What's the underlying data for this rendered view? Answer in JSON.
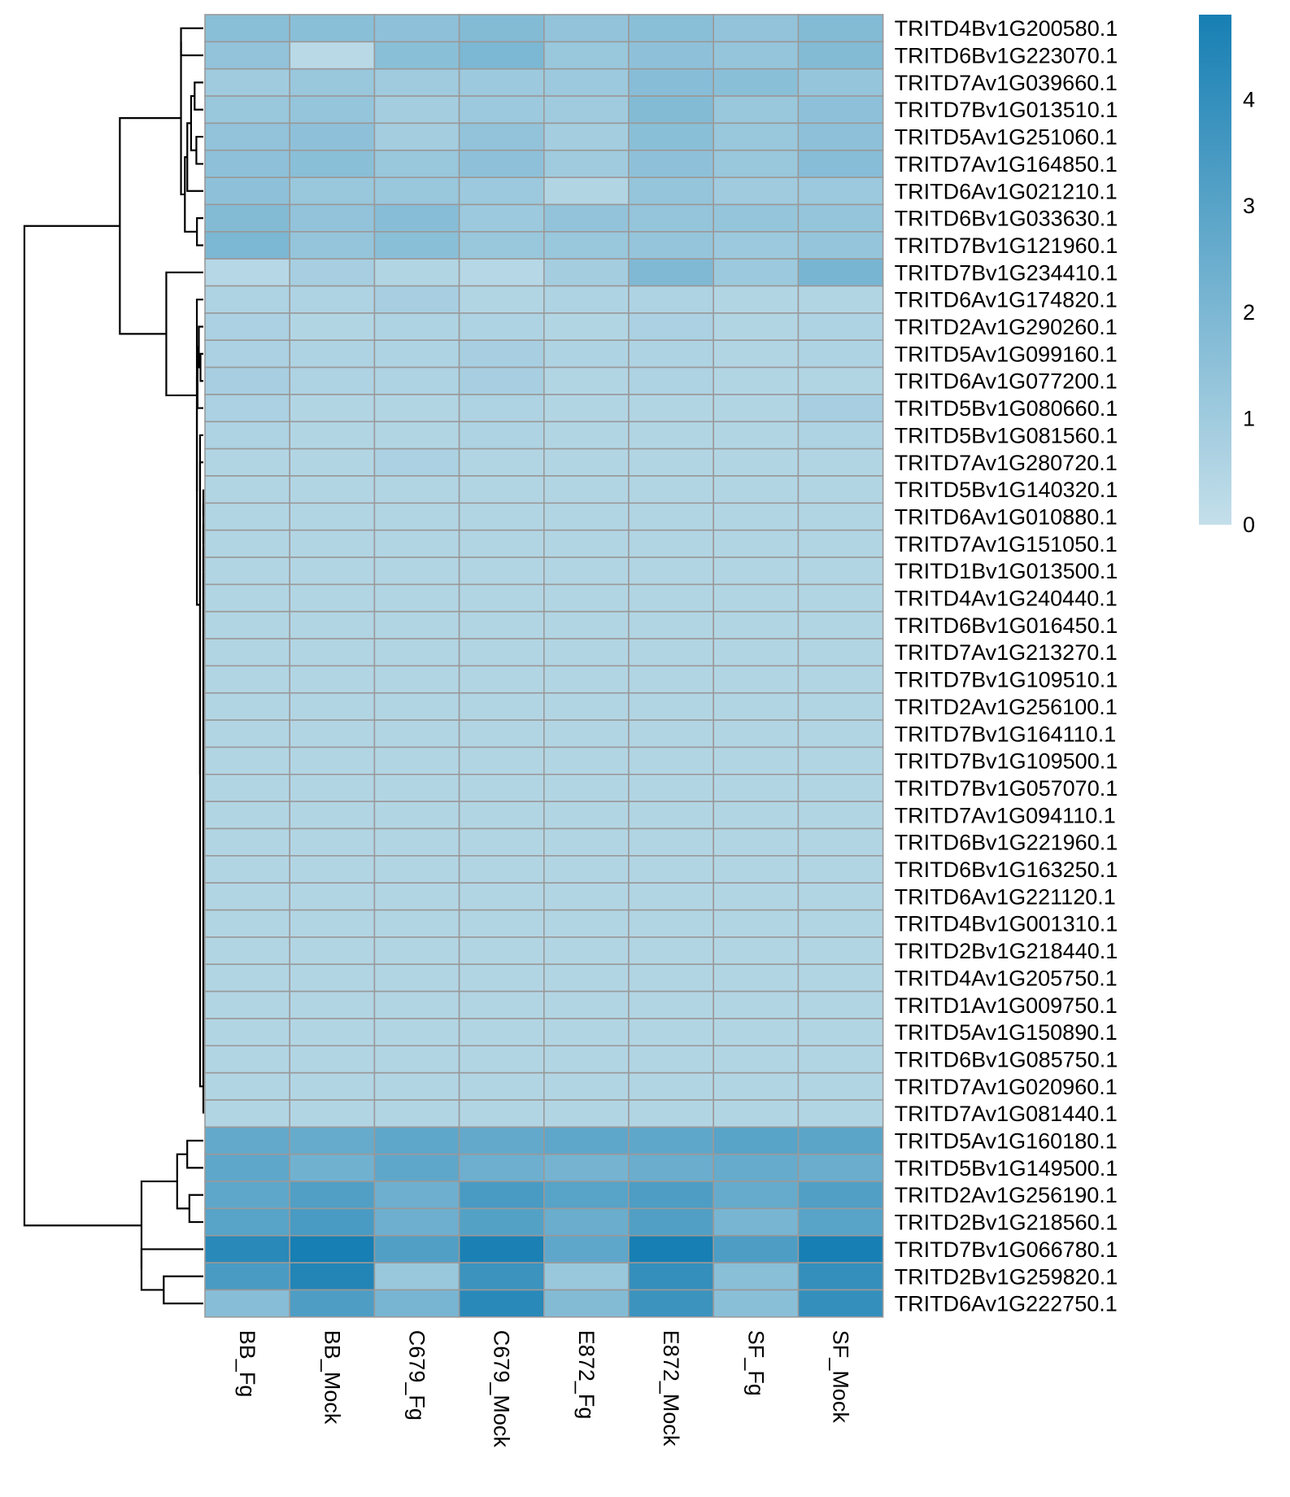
{
  "chart_data": {
    "type": "heatmap",
    "title": "",
    "columns": [
      "BB_Fg",
      "BB_Mock",
      "C679_Fg",
      "C679_Mock",
      "E872_Fg",
      "E872_Mock",
      "SF_Fg",
      "SF_Mock"
    ],
    "rows": [
      "TRITD4Bv1G200580.1",
      "TRITD6Bv1G223070.1",
      "TRITD7Av1G039660.1",
      "TRITD7Bv1G013510.1",
      "TRITD5Av1G251060.1",
      "TRITD7Av1G164850.1",
      "TRITD6Av1G021210.1",
      "TRITD6Bv1G033630.1",
      "TRITD7Bv1G121960.1",
      "TRITD7Bv1G234410.1",
      "TRITD6Av1G174820.1",
      "TRITD2Av1G290260.1",
      "TRITD5Av1G099160.1",
      "TRITD6Av1G077200.1",
      "TRITD5Bv1G080660.1",
      "TRITD5Bv1G081560.1",
      "TRITD7Av1G280720.1",
      "TRITD5Bv1G140320.1",
      "TRITD6Av1G010880.1",
      "TRITD7Av1G151050.1",
      "TRITD1Bv1G013500.1",
      "TRITD4Av1G240440.1",
      "TRITD6Bv1G016450.1",
      "TRITD7Av1G213270.1",
      "TRITD7Bv1G109510.1",
      "TRITD2Av1G256100.1",
      "TRITD7Bv1G164110.1",
      "TRITD7Bv1G109500.1",
      "TRITD7Bv1G057070.1",
      "TRITD7Av1G094110.1",
      "TRITD6Bv1G221960.1",
      "TRITD6Bv1G163250.1",
      "TRITD6Av1G221120.1",
      "TRITD4Bv1G001310.1",
      "TRITD2Bv1G218440.1",
      "TRITD4Av1G205750.1",
      "TRITD1Av1G009750.1",
      "TRITD5Av1G150890.1",
      "TRITD6Bv1G085750.1",
      "TRITD7Av1G020960.1",
      "TRITD7Av1G081440.1",
      "TRITD5Av1G160180.1",
      "TRITD5Bv1G149500.1",
      "TRITD2Av1G256190.1",
      "TRITD2Bv1G218560.1",
      "TRITD7Bv1G066780.1",
      "TRITD2Bv1G259820.1",
      "TRITD6Av1G222750.1"
    ],
    "values": [
      [
        1.6,
        1.6,
        1.5,
        1.8,
        1.4,
        1.6,
        1.4,
        1.8
      ],
      [
        1.4,
        0.3,
        1.6,
        2.0,
        1.2,
        1.5,
        1.3,
        1.8
      ],
      [
        1.0,
        1.2,
        1.0,
        1.1,
        1.1,
        1.7,
        1.6,
        1.3
      ],
      [
        1.2,
        1.3,
        0.9,
        1.1,
        1.0,
        1.8,
        1.2,
        1.5
      ],
      [
        1.4,
        1.5,
        0.9,
        1.4,
        0.9,
        1.6,
        1.2,
        1.5
      ],
      [
        1.5,
        1.6,
        1.2,
        1.5,
        1.0,
        1.5,
        1.2,
        1.7
      ],
      [
        1.5,
        1.2,
        1.2,
        1.1,
        0.5,
        1.3,
        1.0,
        1.1
      ],
      [
        1.8,
        1.4,
        1.7,
        1.1,
        1.4,
        1.3,
        1.3,
        1.3
      ],
      [
        2.0,
        1.3,
        1.6,
        1.2,
        1.2,
        1.3,
        1.1,
        1.3
      ],
      [
        0.4,
        0.8,
        0.5,
        0.4,
        0.9,
        1.9,
        1.1,
        2.1
      ],
      [
        0.6,
        0.6,
        0.8,
        0.5,
        0.6,
        0.6,
        0.5,
        0.5
      ],
      [
        0.7,
        0.5,
        0.6,
        0.6,
        0.5,
        0.7,
        0.5,
        0.6
      ],
      [
        0.7,
        0.6,
        0.6,
        0.8,
        0.6,
        0.6,
        0.5,
        0.6
      ],
      [
        0.8,
        0.6,
        0.6,
        0.8,
        0.5,
        0.6,
        0.5,
        0.5
      ],
      [
        0.7,
        0.5,
        0.5,
        0.6,
        0.5,
        0.5,
        0.5,
        0.8
      ],
      [
        0.6,
        0.5,
        0.5,
        0.6,
        0.5,
        0.5,
        0.5,
        0.6
      ],
      [
        0.5,
        0.5,
        0.7,
        0.5,
        0.5,
        0.5,
        0.5,
        0.5
      ],
      [
        0.5,
        0.5,
        0.5,
        0.5,
        0.5,
        0.5,
        0.5,
        0.5
      ],
      [
        0.5,
        0.5,
        0.5,
        0.5,
        0.5,
        0.5,
        0.5,
        0.5
      ],
      [
        0.5,
        0.5,
        0.5,
        0.5,
        0.5,
        0.5,
        0.5,
        0.5
      ],
      [
        0.5,
        0.5,
        0.5,
        0.5,
        0.5,
        0.5,
        0.5,
        0.5
      ],
      [
        0.5,
        0.5,
        0.5,
        0.5,
        0.5,
        0.5,
        0.5,
        0.5
      ],
      [
        0.5,
        0.5,
        0.5,
        0.5,
        0.5,
        0.5,
        0.5,
        0.5
      ],
      [
        0.5,
        0.5,
        0.5,
        0.5,
        0.5,
        0.5,
        0.5,
        0.5
      ],
      [
        0.5,
        0.5,
        0.5,
        0.5,
        0.5,
        0.5,
        0.5,
        0.5
      ],
      [
        0.5,
        0.5,
        0.5,
        0.5,
        0.5,
        0.5,
        0.5,
        0.5
      ],
      [
        0.5,
        0.5,
        0.5,
        0.5,
        0.5,
        0.5,
        0.5,
        0.5
      ],
      [
        0.5,
        0.5,
        0.5,
        0.5,
        0.5,
        0.5,
        0.5,
        0.5
      ],
      [
        0.5,
        0.5,
        0.5,
        0.5,
        0.5,
        0.5,
        0.5,
        0.5
      ],
      [
        0.5,
        0.5,
        0.5,
        0.5,
        0.5,
        0.5,
        0.5,
        0.5
      ],
      [
        0.5,
        0.5,
        0.5,
        0.5,
        0.5,
        0.5,
        0.5,
        0.5
      ],
      [
        0.5,
        0.5,
        0.5,
        0.5,
        0.5,
        0.5,
        0.5,
        0.5
      ],
      [
        0.5,
        0.5,
        0.5,
        0.5,
        0.5,
        0.5,
        0.5,
        0.5
      ],
      [
        0.5,
        0.5,
        0.5,
        0.5,
        0.5,
        0.5,
        0.5,
        0.5
      ],
      [
        0.5,
        0.5,
        0.5,
        0.5,
        0.5,
        0.5,
        0.5,
        0.5
      ],
      [
        0.5,
        0.5,
        0.5,
        0.5,
        0.5,
        0.5,
        0.5,
        0.5
      ],
      [
        0.5,
        0.5,
        0.5,
        0.5,
        0.5,
        0.5,
        0.5,
        0.5
      ],
      [
        0.5,
        0.5,
        0.5,
        0.5,
        0.5,
        0.5,
        0.5,
        0.5
      ],
      [
        0.5,
        0.5,
        0.5,
        0.5,
        0.5,
        0.5,
        0.5,
        0.5
      ],
      [
        0.5,
        0.5,
        0.5,
        0.5,
        0.5,
        0.5,
        0.5,
        0.5
      ],
      [
        0.5,
        0.5,
        0.5,
        0.5,
        0.5,
        0.5,
        0.5,
        0.5
      ],
      [
        2.7,
        2.6,
        2.8,
        2.7,
        2.8,
        2.8,
        3.0,
        2.9
      ],
      [
        2.8,
        2.3,
        2.8,
        2.4,
        2.2,
        2.5,
        2.6,
        2.5
      ],
      [
        2.8,
        3.2,
        2.4,
        3.4,
        3.0,
        3.3,
        2.6,
        3.2
      ],
      [
        3.0,
        3.4,
        2.4,
        3.1,
        2.5,
        3.2,
        2.1,
        3.0
      ],
      [
        4.3,
        4.8,
        3.2,
        4.7,
        2.8,
        4.8,
        3.3,
        4.8
      ],
      [
        3.4,
        4.5,
        1.2,
        3.8,
        1.2,
        4.0,
        1.6,
        4.0
      ],
      [
        1.7,
        3.3,
        2.1,
        4.3,
        1.8,
        3.8,
        1.6,
        4.0
      ]
    ],
    "colorbar": {
      "ticks": [
        0,
        1,
        2,
        3,
        4
      ],
      "range": [
        0,
        4.8
      ],
      "low_color": "#c4dfea",
      "high_color": "#177fb3"
    },
    "cell_border_color": "#999999",
    "row_dendrogram": true,
    "row_clusters": [
      [
        0,
        8
      ],
      [
        9,
        40
      ],
      [
        41,
        47
      ]
    ]
  }
}
